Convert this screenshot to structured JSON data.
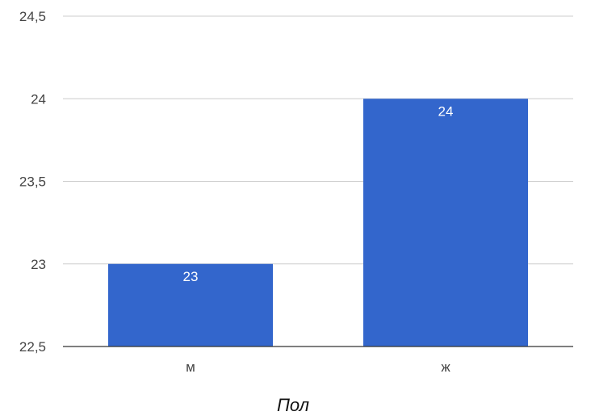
{
  "chart_data": {
    "type": "bar",
    "categories": [
      "м",
      "ж"
    ],
    "values": [
      23,
      24
    ],
    "data_labels": [
      "23",
      "24"
    ],
    "title": "",
    "xlabel": "Пол",
    "ylabel": "",
    "ylim": [
      22.5,
      24.5
    ],
    "yticks": [
      22.5,
      23,
      23.5,
      24,
      24.5
    ],
    "ytick_labels": [
      "22,5",
      "23",
      "23,5",
      "24",
      "24,5"
    ],
    "grid": true,
    "legend": "none",
    "colors": {
      "bar": "#3366cc",
      "grid": "#cccccc",
      "axis": "#333333"
    }
  }
}
